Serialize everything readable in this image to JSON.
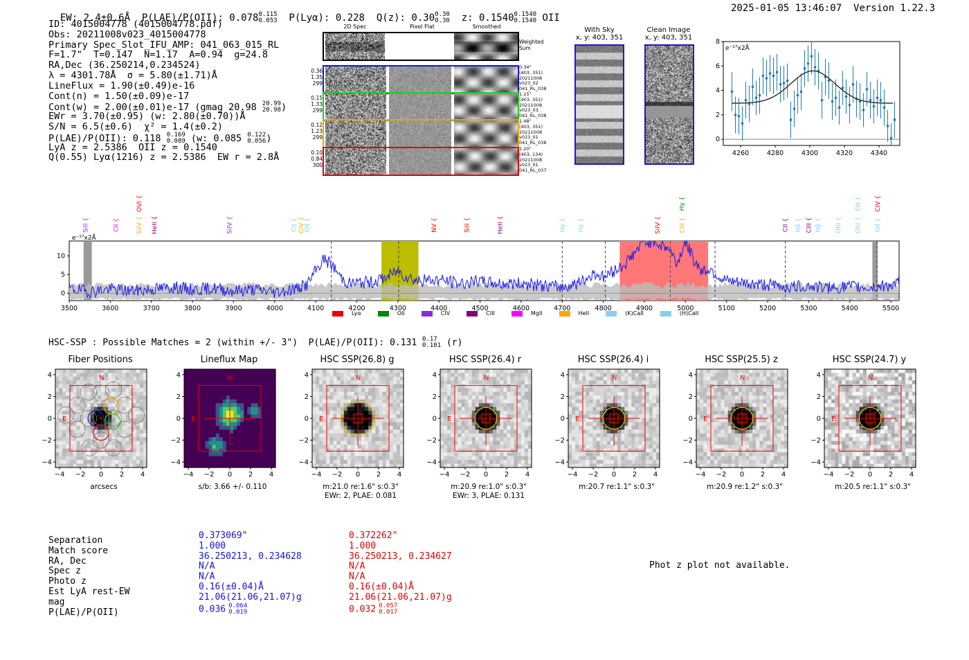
{
  "header": {
    "ew": "EW: 2.4±0.6Å",
    "plae_label": "P(LAE)/P(OII): 0.078",
    "plae_hi": "0.115",
    "plae_lo": "0.053",
    "plya": "P(Lyα): 0.228",
    "qz_label": "Q(z): 0.30",
    "qz_hi": "0.30",
    "qz_lo": "0.30",
    "z_label": "z: 0.1540",
    "z_hi": "0.1540",
    "z_lo": "0.1540",
    "z_line": "OII",
    "timestamp": "2025-01-05 13:46:07",
    "version": "Version 1.22.3"
  },
  "info": {
    "id": "ID: 4015004778 (4015004778.pdf)",
    "obs": "Obs: 20211008v023_4015004778",
    "primary": "Primary Spec_Slot_IFU_AMP: 041_063_015_RL",
    "fit": "F=1.7\"  T=0.147  N=1.17  A=0.94  g=24.8",
    "radec": "RA,Dec (36.250214,0.234524)",
    "lambda": "λ = 4301.78Å  σ = 5.80(±1.71)Å",
    "lineflux": "LineFlux = 1.90(±0.49)e-16",
    "contn": "Cont(n) = 1.50(±0.09)e-17",
    "contw": "Cont(w) = 2.00(±0.01)e-17 (gmag 20.98",
    "contw_hi": "20.99",
    "contw_lo": "20.98",
    "contw_end": ")",
    "ewr": "EWr = 3.70(±0.95) (w: 2.80(±0.70))Å",
    "sn": "S/N = 6.5(±0.6)  χ² = 1.4(±0.2)",
    "plae_a": "P(LAE)/P(OII): 0.118",
    "plae_a_hi": "0.169",
    "plae_a_lo": "0.089",
    "plae_b": " (w: 0.085",
    "plae_b_hi": "0.122",
    "plae_b_lo": "0.056",
    "plae_b_end": ")",
    "lya": "LyA z = 2.5386  OII z = 0.1540",
    "q": "Q(0.55) Lyα(1216) z = 2.5386  EW r = 2.8Å"
  },
  "cutouts": {
    "col1": "2D Spec",
    "col2": "Pixel Flat",
    "col3": "Smoothed",
    "weighted": "Weighted Sum",
    "rows": [
      {
        "left": [
          "0.36",
          "1.35",
          "299"
        ],
        "right": [
          "0.34\"",
          "(403, 351)",
          "20211008",
          "v023_02",
          "041_RL_038"
        ],
        "color": "#1a1ad0"
      },
      {
        "left": [
          "0.15",
          "1.33",
          "299"
        ],
        "right": [
          "1.15\"",
          "(403, 351)",
          "20211008",
          "v023_03",
          "041_RL_038"
        ],
        "color": "#22cc22"
      },
      {
        "left": [
          "0.12",
          "1.23",
          "299"
        ],
        "right": [
          "1.48\"",
          "(403, 351)",
          "20211008",
          "v023_01",
          "041_RL_038"
        ],
        "color": "#f5a000"
      },
      {
        "left": [
          "0.10",
          "0.84",
          "300"
        ],
        "right": [
          "1.20\"",
          "(403, 134)",
          "20211008",
          "v023_01",
          "041_RL_037"
        ],
        "color": "#e00000"
      }
    ]
  },
  "sky": {
    "title": "With Sky",
    "coords": "x, y: 403, 351"
  },
  "clean": {
    "title": "Clean Image",
    "coords": "x, y: 403, 351"
  },
  "fitplot": {
    "ylabel": "e⁻¹⁷x2Å"
  },
  "fullspec": {
    "ylabel": "e⁻¹⁷x2Å"
  },
  "legend": [
    {
      "label": "Lyα",
      "color": "#ee0000"
    },
    {
      "label": "OII",
      "color": "#008800"
    },
    {
      "label": "CIV",
      "color": "#8a2be2"
    },
    {
      "label": "CIII",
      "color": "#800080"
    },
    {
      "label": "MgII",
      "color": "#ff00ff"
    },
    {
      "label": "HeII",
      "color": "#ffa500"
    },
    {
      "label": "(K)CaII",
      "color": "#87cefa"
    },
    {
      "label": "(H)CaII",
      "color": "#87ceeb"
    }
  ],
  "hsc": {
    "title": "HSC-SSP : Possible Matches = 2 (within +/- 3\")  P(LAE)/P(OII): 0.131",
    "hi": "0.17",
    "lo": "0.101",
    "band": " (r)"
  },
  "panels": [
    {
      "title": "Fiber Positions",
      "cap1": "arcsecs",
      "cap2": ""
    },
    {
      "title": "Lineflux Map",
      "cap1": "s/b: 3.66 +/- 0.110",
      "cap2": ""
    },
    {
      "title": "HSC SSP(26.8) g",
      "cap1": "m:21.0  re:1.6\"  s:0.3\"",
      "cap2": "EWr: 2, PLAE: 0.081"
    },
    {
      "title": "HSC SSP(26.4) r",
      "cap1": "m:20.9  re:1.0\"  s:0.3\"",
      "cap2": "EWr: 3, PLAE: 0.131"
    },
    {
      "title": "HSC SSP(26.4) i",
      "cap1": "m:20.7  re:1.1\"  s:0.3\"",
      "cap2": ""
    },
    {
      "title": "HSC SSP(25.5) z",
      "cap1": "m:20.9  re:1.2\"  s:0.3\"",
      "cap2": ""
    },
    {
      "title": "HSC SSP(24.7) y",
      "cap1": "m:20.5  re:1.1\"  s:0.3\"",
      "cap2": ""
    }
  ],
  "matches": {
    "labels": [
      "Separation",
      "Match score",
      "RA, Dec",
      "Spec z",
      "Photo z",
      "Est LyA rest-EW",
      "mag",
      "P(LAE)/P(OII)"
    ],
    "m1": [
      "0.373069\"",
      "1.000",
      "36.250213, 0.234628",
      "N/A",
      "N/A",
      "0.16(±0.04)Å",
      "21.06(21.06,21.07)g",
      "0.036"
    ],
    "m1_hi": "0.064",
    "m1_lo": "0.019",
    "m2": [
      "0.372262\"",
      "1.000",
      "36.250213, 0.234627",
      "N/A",
      "N/A",
      "0.16(±0.04)Å",
      "21.06(21.06,21.07)g",
      "0.032"
    ],
    "m2_hi": "0.057",
    "m2_lo": "0.017",
    "photz": "Phot z plot not available."
  },
  "chart_data": [
    {
      "type": "scatter",
      "title": "",
      "xlabel": "",
      "ylabel": "e⁻¹⁷x2Å",
      "xlim": [
        4250,
        4352
      ],
      "ylim": [
        -0.5,
        8
      ],
      "xticks": [
        4260,
        4280,
        4300,
        4320,
        4340
      ],
      "yticks": [
        0,
        2,
        4,
        6,
        8
      ],
      "x": [
        4255,
        4257,
        4259,
        4261,
        4263,
        4265,
        4267,
        4269,
        4271,
        4273,
        4275,
        4277,
        4279,
        4281,
        4283,
        4285,
        4287,
        4289,
        4291,
        4293,
        4295,
        4297,
        4299,
        4301,
        4303,
        4305,
        4307,
        4309,
        4311,
        4313,
        4315,
        4317,
        4319,
        4321,
        4323,
        4325,
        4327,
        4329,
        4331,
        4333,
        4335,
        4337,
        4339,
        4341,
        4343,
        4345,
        4347,
        4349
      ],
      "y": [
        3.9,
        2.0,
        1.9,
        1.3,
        3.2,
        2.9,
        4.3,
        3.4,
        3.6,
        5.2,
        5.0,
        5.4,
        5.2,
        5.5,
        4.5,
        4.6,
        4.8,
        1.6,
        2.5,
        3.6,
        3.9,
        5.8,
        6.2,
        6.8,
        5.9,
        5.6,
        3.2,
        5.1,
        4.8,
        3.1,
        3.4,
        2.6,
        4.2,
        3.5,
        2.8,
        4.5,
        3.3,
        3.1,
        2.4,
        4.1,
        3.2,
        2.7,
        3.4,
        3.2,
        2.6,
        1.1,
        0.1,
        1.6
      ],
      "yerr": [
        1.6,
        1.5,
        1.5,
        1.4,
        1.5,
        1.5,
        1.5,
        1.4,
        1.5,
        1.5,
        1.5,
        1.5,
        1.5,
        1.5,
        1.5,
        1.4,
        1.4,
        1.5,
        1.5,
        1.5,
        1.5,
        1.5,
        1.5,
        1.5,
        1.5,
        1.5,
        1.5,
        1.5,
        1.5,
        1.5,
        1.5,
        1.4,
        1.4,
        1.4,
        1.5,
        1.5,
        1.5,
        1.5,
        1.4,
        1.4,
        1.5,
        1.4,
        1.5,
        1.5,
        1.5,
        1.3,
        1.2,
        1.5
      ],
      "fit": {
        "model": "gaussian",
        "continuum": 2.95,
        "amplitude": 2.65,
        "center": 4301.78,
        "sigma": 5.8
      }
    },
    {
      "type": "line",
      "title": "",
      "xlabel": "",
      "ylabel": "e⁻¹⁷x2Å",
      "xlim": [
        3500,
        5520
      ],
      "ylim": [
        -2,
        14
      ],
      "xticks": [
        3500,
        3600,
        3700,
        3800,
        3900,
        4000,
        4100,
        4200,
        4300,
        4400,
        4500,
        4600,
        4700,
        4800,
        4900,
        5000,
        5100,
        5200,
        5300,
        5400,
        5500
      ],
      "yticks": [
        0,
        5,
        10
      ],
      "baseline": [
        [
          3500,
          1.2
        ],
        [
          3550,
          0.4
        ],
        [
          3600,
          1.1
        ],
        [
          3650,
          0.6
        ],
        [
          3700,
          1.0
        ],
        [
          3750,
          1.6
        ],
        [
          3800,
          0.9
        ],
        [
          3850,
          1.3
        ],
        [
          3900,
          0.6
        ],
        [
          3950,
          1.0
        ],
        [
          4000,
          0.3
        ],
        [
          4050,
          1.1
        ],
        [
          4080,
          2.4
        ],
        [
          4100,
          6.0
        ],
        [
          4120,
          9.2
        ],
        [
          4140,
          7.5
        ],
        [
          4160,
          4.4
        ],
        [
          4180,
          2.6
        ],
        [
          4200,
          2.8
        ],
        [
          4240,
          3.0
        ],
        [
          4270,
          4.2
        ],
        [
          4300,
          6.0
        ],
        [
          4320,
          4.5
        ],
        [
          4350,
          3.3
        ],
        [
          4400,
          3.6
        ],
        [
          4450,
          2.6
        ],
        [
          4500,
          3.1
        ],
        [
          4550,
          2.5
        ],
        [
          4600,
          2.6
        ],
        [
          4650,
          2.0
        ],
        [
          4700,
          1.6
        ],
        [
          4750,
          3.1
        ],
        [
          4780,
          5.5
        ],
        [
          4800,
          4.2
        ],
        [
          4850,
          7.6
        ],
        [
          4870,
          10.0
        ],
        [
          4900,
          14.0
        ],
        [
          4930,
          13.5
        ],
        [
          4960,
          12.0
        ],
        [
          4980,
          8.0
        ],
        [
          5000,
          14.0
        ],
        [
          5020,
          9.0
        ],
        [
          5040,
          6.0
        ],
        [
          5060,
          6.5
        ],
        [
          5080,
          4.5
        ],
        [
          5100,
          3.0
        ],
        [
          5150,
          2.5
        ],
        [
          5200,
          2.3
        ],
        [
          5250,
          1.6
        ],
        [
          5300,
          2.0
        ],
        [
          5350,
          1.3
        ],
        [
          5400,
          1.8
        ],
        [
          5450,
          1.5
        ],
        [
          5500,
          2.2
        ],
        [
          5520,
          2.5
        ]
      ],
      "regions": [
        {
          "from": 3535,
          "to": 3555,
          "color": "gray"
        },
        {
          "from": 4260,
          "to": 4350,
          "color": "olive"
        },
        {
          "from": 4840,
          "to": 5055,
          "color": "red"
        },
        {
          "from": 5455,
          "to": 5468,
          "color": "gray"
        }
      ],
      "dashed_lines": [
        4138,
        4302,
        4700,
        4805,
        4963,
        5072,
        5243,
        5466
      ],
      "lines": [
        {
          "label": "SiII",
          "x": 3540,
          "color": "#8a2be2"
        },
        {
          "label": "CII",
          "x": 3614,
          "color": "#ff00ff"
        },
        {
          "label": "SiIV",
          "x": 3670,
          "color": "#ffa500"
        },
        {
          "label": "OVI",
          "x": 3670,
          "color": "#ee0000"
        },
        {
          "label": "HeII",
          "x": 3707,
          "color": "#800080"
        },
        {
          "label": "SiIV",
          "x": 3890,
          "color": "#8a2be2"
        },
        {
          "label": "CII",
          "x": 4047,
          "color": "#87cefa"
        },
        {
          "label": "CIV",
          "x": 4064,
          "color": "#ffa500"
        },
        {
          "label": "OII",
          "x": 4079,
          "color": "#87ceeb"
        },
        {
          "label": "NV",
          "x": 4388,
          "color": "#ee0000"
        },
        {
          "label": "SiII",
          "x": 4468,
          "color": "#ee0000"
        },
        {
          "label": "HeII",
          "x": 4549,
          "color": "#800080"
        },
        {
          "label": "Hγ",
          "x": 4700,
          "color": "#87cefa"
        },
        {
          "label": "Hγ",
          "x": 4745,
          "color": "#87cefa"
        },
        {
          "label": "SiIV",
          "x": 4932,
          "color": "#ee0000"
        },
        {
          "label": "CIII",
          "x": 4992,
          "color": "#ffa500"
        },
        {
          "label": "Hγ",
          "x": 4991,
          "color": "#008800"
        },
        {
          "label": "CII",
          "x": 5243,
          "color": "#800080"
        },
        {
          "label": "Hδ",
          "x": 5274,
          "color": "#87cefa"
        },
        {
          "label": "CIII",
          "x": 5300,
          "color": "#800080"
        },
        {
          "label": "Hβ",
          "x": 5323,
          "color": "#87cefa"
        },
        {
          "label": "OIII",
          "x": 5372,
          "color": "#87cefa"
        },
        {
          "label": "OIII",
          "x": 5420,
          "color": "#87cefa"
        },
        {
          "label": "OII",
          "x": 5420,
          "color": "#87ceeb"
        },
        {
          "label": "OII",
          "x": 5468,
          "color": "#87ceeb"
        },
        {
          "label": "CIV",
          "x": 5468,
          "color": "#ee0000"
        }
      ]
    }
  ]
}
